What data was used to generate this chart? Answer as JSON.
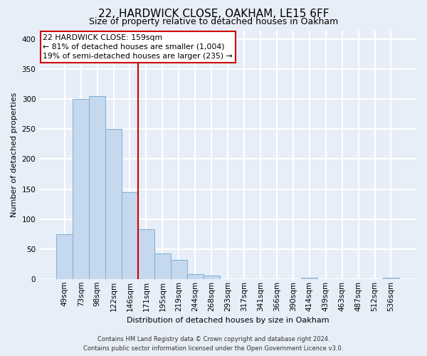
{
  "title": "22, HARDWICK CLOSE, OAKHAM, LE15 6FF",
  "subtitle": "Size of property relative to detached houses in Oakham",
  "xlabel": "Distribution of detached houses by size in Oakham",
  "ylabel": "Number of detached properties",
  "bin_labels": [
    "49sqm",
    "73sqm",
    "98sqm",
    "122sqm",
    "146sqm",
    "171sqm",
    "195sqm",
    "219sqm",
    "244sqm",
    "268sqm",
    "293sqm",
    "317sqm",
    "341sqm",
    "366sqm",
    "390sqm",
    "414sqm",
    "439sqm",
    "463sqm",
    "487sqm",
    "512sqm",
    "536sqm"
  ],
  "bar_heights": [
    75,
    300,
    305,
    250,
    145,
    83,
    43,
    32,
    8,
    6,
    0,
    0,
    0,
    0,
    0,
    2,
    0,
    0,
    0,
    0,
    2
  ],
  "bar_color": "#c5d8ee",
  "bar_edge_color": "#7bafd4",
  "vline_color": "#cc0000",
  "vline_x_index": 4.5,
  "annotation_line1": "22 HARDWICK CLOSE: 159sqm",
  "annotation_line2": "← 81% of detached houses are smaller (1,004)",
  "annotation_line3": "19% of semi-detached houses are larger (235) →",
  "annotation_box_color": "#ffffff",
  "annotation_box_edge": "#cc0000",
  "ylim": [
    0,
    415
  ],
  "yticks": [
    0,
    50,
    100,
    150,
    200,
    250,
    300,
    350,
    400
  ],
  "footer_line1": "Contains HM Land Registry data © Crown copyright and database right 2024.",
  "footer_line2": "Contains public sector information licensed under the Open Government Licence v3.0.",
  "background_color": "#e8eef8",
  "plot_background_color": "#e8eef8",
  "grid_color": "#ffffff",
  "title_fontsize": 11,
  "subtitle_fontsize": 9,
  "ylabel_fontsize": 8,
  "xlabel_fontsize": 8,
  "tick_fontsize": 7.5,
  "footer_fontsize": 6
}
